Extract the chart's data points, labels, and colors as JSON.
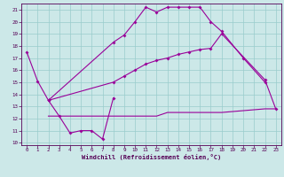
{
  "bg_color": "#cce8e8",
  "grid_color": "#99cccc",
  "line_color": "#990099",
  "xlabel": "Windchill (Refroidissement éolien,°C)",
  "xlim": [
    -0.5,
    23.5
  ],
  "ylim": [
    9.8,
    21.5
  ],
  "yticks": [
    10,
    11,
    12,
    13,
    14,
    15,
    16,
    17,
    18,
    19,
    20,
    21
  ],
  "xticks": [
    0,
    1,
    2,
    3,
    4,
    5,
    6,
    7,
    8,
    9,
    10,
    11,
    12,
    13,
    14,
    15,
    16,
    17,
    18,
    19,
    20,
    21,
    22,
    23
  ],
  "line1_x": [
    0,
    1,
    2,
    3,
    4,
    5,
    6,
    7,
    8
  ],
  "line1_y": [
    17.5,
    15.1,
    13.5,
    12.2,
    10.8,
    11.0,
    11.0,
    10.3,
    13.7
  ],
  "line2_x": [
    2,
    8,
    9,
    10,
    11,
    12,
    13,
    14,
    15,
    16,
    17,
    18,
    20,
    22
  ],
  "line2_y": [
    13.5,
    18.3,
    18.9,
    20.0,
    21.2,
    20.8,
    21.2,
    21.2,
    21.2,
    21.2,
    20.0,
    19.2,
    17.0,
    15.0
  ],
  "line3_x": [
    2,
    8,
    9,
    10,
    11,
    12,
    13,
    14,
    15,
    16,
    17,
    18,
    22,
    23
  ],
  "line3_y": [
    13.5,
    15.0,
    15.5,
    16.0,
    16.5,
    16.8,
    17.0,
    17.3,
    17.5,
    17.7,
    17.8,
    19.0,
    15.2,
    12.8
  ],
  "line4_x": [
    2,
    10,
    11,
    12,
    13,
    14,
    15,
    16,
    17,
    18,
    22,
    23
  ],
  "line4_y": [
    12.2,
    12.2,
    12.2,
    12.2,
    12.5,
    12.5,
    12.5,
    12.5,
    12.5,
    12.5,
    12.8,
    12.8
  ]
}
